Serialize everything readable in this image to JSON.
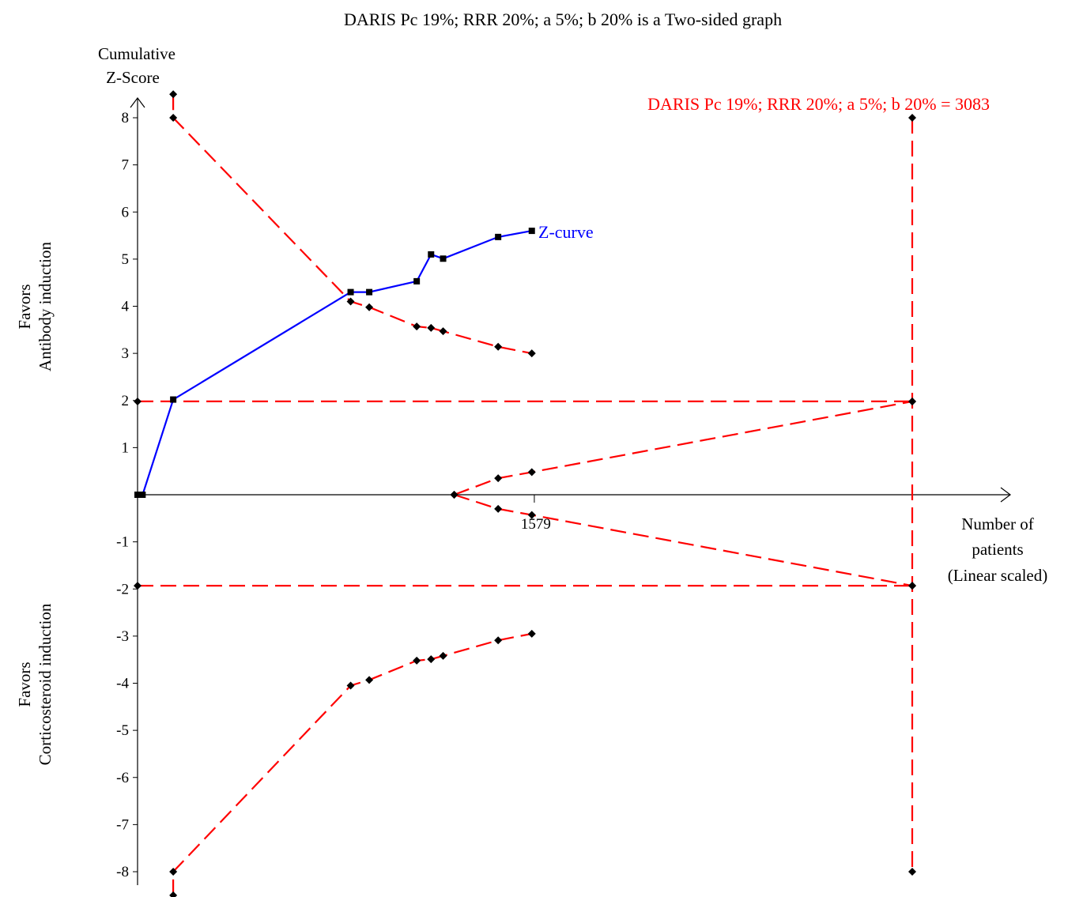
{
  "chart_data": {
    "type": "line",
    "title": "DARIS Pc 19%; RRR 20%; a 5%; b 20% is a Two-sided graph",
    "ylabel_line1": "Cumulative",
    "ylabel_line2": "Z-Score",
    "xlabel_line1": "Number of",
    "xlabel_line2": "patients",
    "xlabel_line3": "(Linear scaled)",
    "favors_top_line1": "Favors",
    "favors_top_line2": "Antibody induction",
    "favors_bottom_line1": "Favors",
    "favors_bottom_line2": "Corticosteroid induction",
    "ylim": [
      -8,
      8
    ],
    "xlim": [
      0,
      3083
    ],
    "y_ticks": [
      "8",
      "7",
      "6",
      "5",
      "4",
      "3",
      "2",
      "1",
      "-1",
      "-2",
      "-3",
      "-4",
      "-5",
      "-6",
      "-7",
      "-8"
    ],
    "x_tick_value": 1579,
    "x_tick_label": "1579",
    "information_size_label": "DARIS Pc 19%; RRR 20%; a 5%; b 20% = 3083",
    "zcurve_label": "Z-curve",
    "colors": {
      "zcurve": "#0000ff",
      "boundary": "#ff0000",
      "axis": "#000000"
    },
    "series": [
      {
        "name": "Z-curve",
        "x": [
          0,
          20,
          142,
          848,
          922,
          1111,
          1168,
          1216,
          1435,
          1569
        ],
        "y": [
          0,
          0,
          2.02,
          4.3,
          4.3,
          4.53,
          5.1,
          5.01,
          5.47,
          5.6
        ]
      },
      {
        "name": "",
        "x": [
          142,
          142,
          848,
          922,
          1111,
          1168,
          1216,
          1435,
          1569
        ],
        "y": [
          8.5,
          8.0,
          4.1,
          3.98,
          3.57,
          3.54,
          3.47,
          3.14,
          3.0
        ]
      },
      {
        "name": "",
        "x": [
          142,
          142,
          848,
          922,
          1111,
          1168,
          1216,
          1435,
          1569
        ],
        "y": [
          -8.5,
          -8.0,
          -4.05,
          -3.93,
          -3.52,
          -3.49,
          -3.42,
          -3.09,
          -2.95
        ]
      },
      {
        "name": "",
        "x": [
          1260,
          1435,
          1569,
          3083
        ],
        "y": [
          0,
          0.35,
          0.48,
          1.98
        ]
      },
      {
        "name": "",
        "x": [
          1260,
          1435,
          1569,
          3083
        ],
        "y": [
          0,
          -0.3,
          -0.43,
          -1.93
        ]
      },
      {
        "name": "",
        "x": [
          0,
          3083
        ],
        "y": [
          1.98,
          1.98
        ]
      },
      {
        "name": "",
        "x": [
          0,
          3083
        ],
        "y": [
          -1.93,
          -1.93
        ]
      },
      {
        "name": "",
        "x": [
          3083,
          3083
        ],
        "y": [
          8,
          -8
        ]
      }
    ]
  }
}
